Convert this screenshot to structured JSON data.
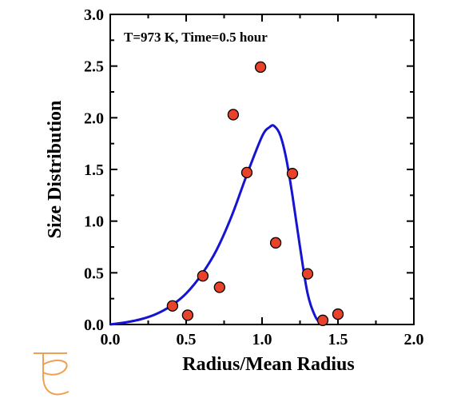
{
  "chart_data": {
    "type": "scatter",
    "xlabel": "Radius/Mean Radius",
    "ylabel": "Size Distribution",
    "annotation": "T=973 K, Time=0.5 hour",
    "xlim": [
      0,
      2
    ],
    "ylim": [
      0,
      3
    ],
    "xticks": [
      "0.0",
      "0.5",
      "1.0",
      "1.5",
      "2.0"
    ],
    "yticks": [
      "0.0",
      "0.5",
      "1.0",
      "1.5",
      "2.0",
      "2.5",
      "3.0"
    ],
    "grid": false,
    "series": [
      {
        "kind": "points",
        "color": "#e8432a",
        "x": [
          0.41,
          0.51,
          0.61,
          0.72,
          0.81,
          0.9,
          0.99,
          1.09,
          1.2,
          1.3,
          1.4,
          1.5
        ],
        "y": [
          0.18,
          0.09,
          0.47,
          0.36,
          2.03,
          1.47,
          2.49,
          0.79,
          1.46,
          0.49,
          0.04,
          0.1
        ]
      },
      {
        "kind": "curve",
        "color": "#1414d2",
        "x": [
          0.0,
          0.1,
          0.2,
          0.3,
          0.4,
          0.5,
          0.6,
          0.7,
          0.8,
          0.9,
          1.0,
          1.05,
          1.08,
          1.12,
          1.16,
          1.2,
          1.25,
          1.3,
          1.35,
          1.39
        ],
        "y": [
          0.0,
          0.02,
          0.05,
          0.1,
          0.18,
          0.3,
          0.48,
          0.72,
          1.05,
          1.45,
          1.82,
          1.91,
          1.92,
          1.83,
          1.6,
          1.25,
          0.75,
          0.3,
          0.08,
          0.0
        ]
      }
    ],
    "logo_color": "#f0a050"
  }
}
